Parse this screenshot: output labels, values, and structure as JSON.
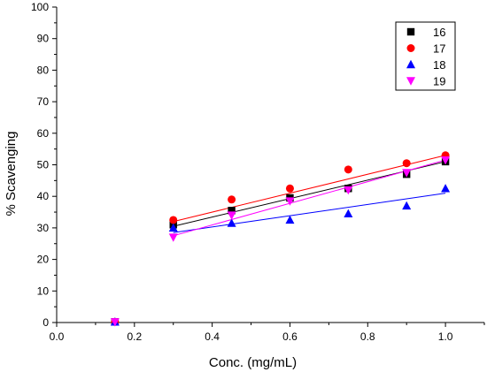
{
  "chart_data": {
    "type": "scatter",
    "xlabel": "Conc. (mg/mL)",
    "ylabel": "% Scavenging",
    "xlim": [
      0.0,
      1.1
    ],
    "ylim": [
      0,
      100
    ],
    "xticks": [
      "0.0",
      "0.2",
      "0.4",
      "0.6",
      "0.8",
      "1.0"
    ],
    "yticks": [
      "0",
      "10",
      "20",
      "30",
      "40",
      "50",
      "60",
      "70",
      "80",
      "90",
      "100"
    ],
    "grid": false,
    "legend_position": "top-right",
    "series": [
      {
        "name": "16",
        "marker": "square",
        "color": "#000000",
        "x": [
          0.15,
          0.3,
          0.45,
          0.6,
          0.75,
          0.9,
          1.0
        ],
        "y": [
          0.2,
          31.0,
          35.5,
          39.5,
          42.5,
          47.0,
          51.0
        ],
        "fit_line": {
          "x": [
            0.3,
            1.0
          ],
          "y": [
            30.5,
            51.0
          ]
        }
      },
      {
        "name": "17",
        "marker": "circle",
        "color": "#ff0000",
        "x": [
          0.15,
          0.3,
          0.45,
          0.6,
          0.75,
          0.9,
          1.0
        ],
        "y": [
          0.2,
          32.5,
          39.0,
          42.5,
          48.5,
          50.5,
          53.0
        ],
        "fit_line": {
          "x": [
            0.3,
            1.0
          ],
          "y": [
            32.0,
            53.0
          ]
        }
      },
      {
        "name": "18",
        "marker": "triangle-up",
        "color": "#0000ff",
        "x": [
          0.15,
          0.3,
          0.45,
          0.6,
          0.75,
          0.9,
          1.0
        ],
        "y": [
          0.2,
          30.0,
          31.5,
          32.5,
          34.5,
          37.0,
          42.5
        ],
        "fit_line": {
          "x": [
            0.3,
            1.0
          ],
          "y": [
            28.5,
            41.0
          ]
        }
      },
      {
        "name": "19",
        "marker": "triangle-down",
        "color": "#ff00ff",
        "x": [
          0.15,
          0.3,
          0.45,
          0.6,
          0.75,
          0.9,
          1.0
        ],
        "y": [
          0.2,
          27.0,
          34.0,
          38.5,
          42.0,
          47.5,
          51.5
        ],
        "fit_line": {
          "x": [
            0.3,
            1.0
          ],
          "y": [
            27.5,
            51.5
          ]
        }
      }
    ]
  }
}
